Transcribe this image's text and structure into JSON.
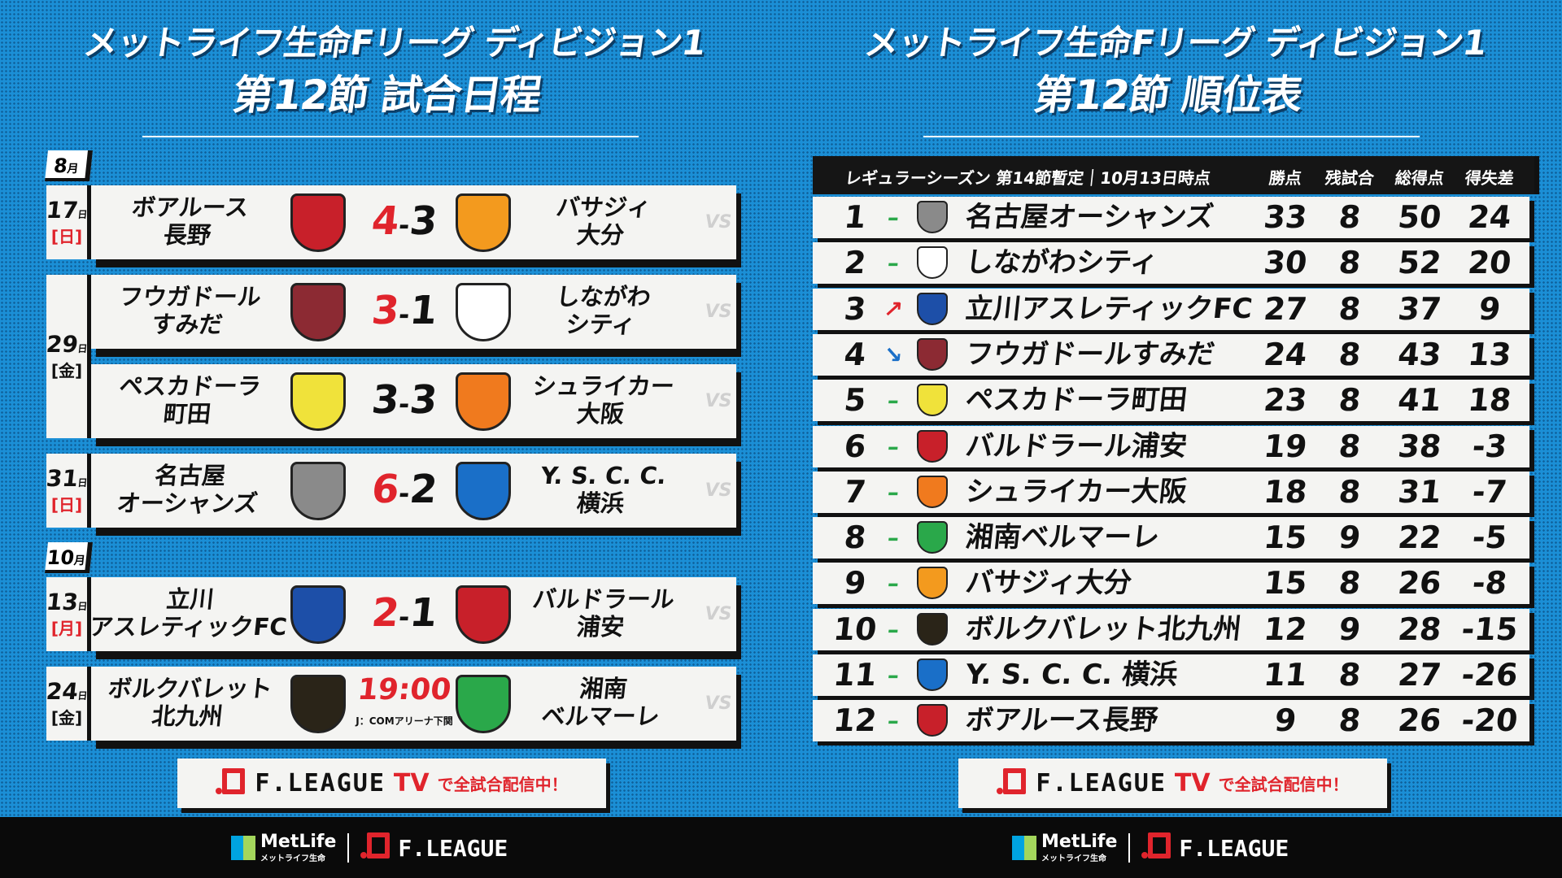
{
  "left": {
    "title_line1": "メットライフ生命Fリーグ ディビジョン1",
    "title_line2": "第12節 試合日程"
  },
  "right": {
    "title_line1": "メットライフ生命Fリーグ ディビジョン1",
    "title_line2": "第12節 順位表"
  },
  "schedule": {
    "months": [
      {
        "label": "8",
        "unit": "月"
      },
      {
        "label": "10",
        "unit": "月"
      }
    ],
    "dates": [
      {
        "day": "17",
        "unit": "日",
        "weekday": "[日]",
        "holiday": true
      },
      {
        "day": "29",
        "unit": "日",
        "weekday": "[金]",
        "holiday": false
      },
      {
        "day": "31",
        "unit": "日",
        "weekday": "[日]",
        "holiday": true
      },
      {
        "day": "13",
        "unit": "日",
        "weekday": "[月]",
        "holiday": true
      },
      {
        "day": "24",
        "unit": "日",
        "weekday": "[金]",
        "holiday": false
      }
    ],
    "vs": "VS",
    "matches": [
      {
        "home": "ボアルース\n長野",
        "away": "バサジィ\n大分",
        "home_score": "4",
        "away_score": "3",
        "sep": "-",
        "home_color": "#c8202a",
        "away_color": "#f39a1e"
      },
      {
        "home": "フウガドール\nすみだ",
        "away": "しながわ\nシティ",
        "home_score": "3",
        "away_score": "1",
        "sep": "-",
        "home_color": "#8c2a33",
        "away_color": "#ffffff"
      },
      {
        "home": "ペスカドーラ\n町田",
        "away": "シュライカー\n大阪",
        "home_score": "3",
        "away_score": "3",
        "sep": "-",
        "home_color": "#f0e23a",
        "away_color": "#f07a1e"
      },
      {
        "home": "名古屋\nオーシャンズ",
        "away": "Y. S. C. C.\n横浜",
        "home_score": "6",
        "away_score": "2",
        "sep": "-",
        "home_color": "#8a8a8a",
        "away_color": "#1a6fc8"
      },
      {
        "home": "立川\nアスレティックFC",
        "away": "バルドラール\n浦安",
        "home_score": "2",
        "away_score": "1",
        "sep": "-",
        "home_color": "#1d4fa8",
        "away_color": "#c8202a"
      },
      {
        "home": "ボルクバレット\n北九州",
        "away": "湘南\nベルマーレ",
        "time": "19:00",
        "venue": "J：COMアリーナ下関",
        "home_color": "#2a2418",
        "away_color": "#2aa84a"
      }
    ]
  },
  "standings": {
    "header": {
      "season": "レギュラーシーズン 第14節暫定｜10月13日時点",
      "cols": [
        "勝点",
        "残試合",
        "総得点",
        "得失差"
      ]
    },
    "rows": [
      {
        "rank": "1",
        "trend": "–",
        "team": "名古屋オーシャンズ",
        "pts": "33",
        "rem": "8",
        "gf": "50",
        "gd": "24",
        "color": "#8a8a8a"
      },
      {
        "rank": "2",
        "trend": "–",
        "team": "しながわシティ",
        "pts": "30",
        "rem": "8",
        "gf": "52",
        "gd": "20",
        "color": "#ffffff"
      },
      {
        "rank": "3",
        "trend": "↗",
        "team": "立川アスレティックFC",
        "pts": "27",
        "rem": "8",
        "gf": "37",
        "gd": "9",
        "color": "#1d4fa8"
      },
      {
        "rank": "4",
        "trend": "↘",
        "team": "フウガドールすみだ",
        "pts": "24",
        "rem": "8",
        "gf": "43",
        "gd": "13",
        "color": "#8c2a33"
      },
      {
        "rank": "5",
        "trend": "–",
        "team": "ペスカドーラ町田",
        "pts": "23",
        "rem": "8",
        "gf": "41",
        "gd": "18",
        "color": "#f0e23a"
      },
      {
        "rank": "6",
        "trend": "–",
        "team": "バルドラール浦安",
        "pts": "19",
        "rem": "8",
        "gf": "38",
        "gd": "-3",
        "color": "#c8202a"
      },
      {
        "rank": "7",
        "trend": "–",
        "team": "シュライカー大阪",
        "pts": "18",
        "rem": "8",
        "gf": "31",
        "gd": "-7",
        "color": "#f07a1e"
      },
      {
        "rank": "8",
        "trend": "–",
        "team": "湘南ベルマーレ",
        "pts": "15",
        "rem": "9",
        "gf": "22",
        "gd": "-5",
        "color": "#2aa84a"
      },
      {
        "rank": "9",
        "trend": "–",
        "team": "バサジィ大分",
        "pts": "15",
        "rem": "8",
        "gf": "26",
        "gd": "-8",
        "color": "#f39a1e"
      },
      {
        "rank": "10",
        "trend": "–",
        "team": "ボルクバレット北九州",
        "pts": "12",
        "rem": "9",
        "gf": "28",
        "gd": "-15",
        "color": "#2a2418"
      },
      {
        "rank": "11",
        "trend": "–",
        "team": "Y. S. C. C. 横浜",
        "pts": "11",
        "rem": "8",
        "gf": "27",
        "gd": "-26",
        "color": "#1a6fc8"
      },
      {
        "rank": "12",
        "trend": "–",
        "team": "ボアルース長野",
        "pts": "9",
        "rem": "8",
        "gf": "26",
        "gd": "-20",
        "color": "#c8202a"
      }
    ],
    "trend_colors": {
      "up": "#e0242c",
      "down": "#1a6fc8",
      "same": "#2aa84a"
    }
  },
  "banner": {
    "brand": "F.LEAGUE",
    "tv": "TV",
    "text": "で全試合配信中！"
  },
  "footer": {
    "metlife": "MetLife",
    "metlife_sub": "メットライフ生命",
    "fleague": "F.LEAGUE"
  },
  "colors": {
    "accent_red": "#e0242c",
    "background_blue": "#1b8fd6"
  }
}
